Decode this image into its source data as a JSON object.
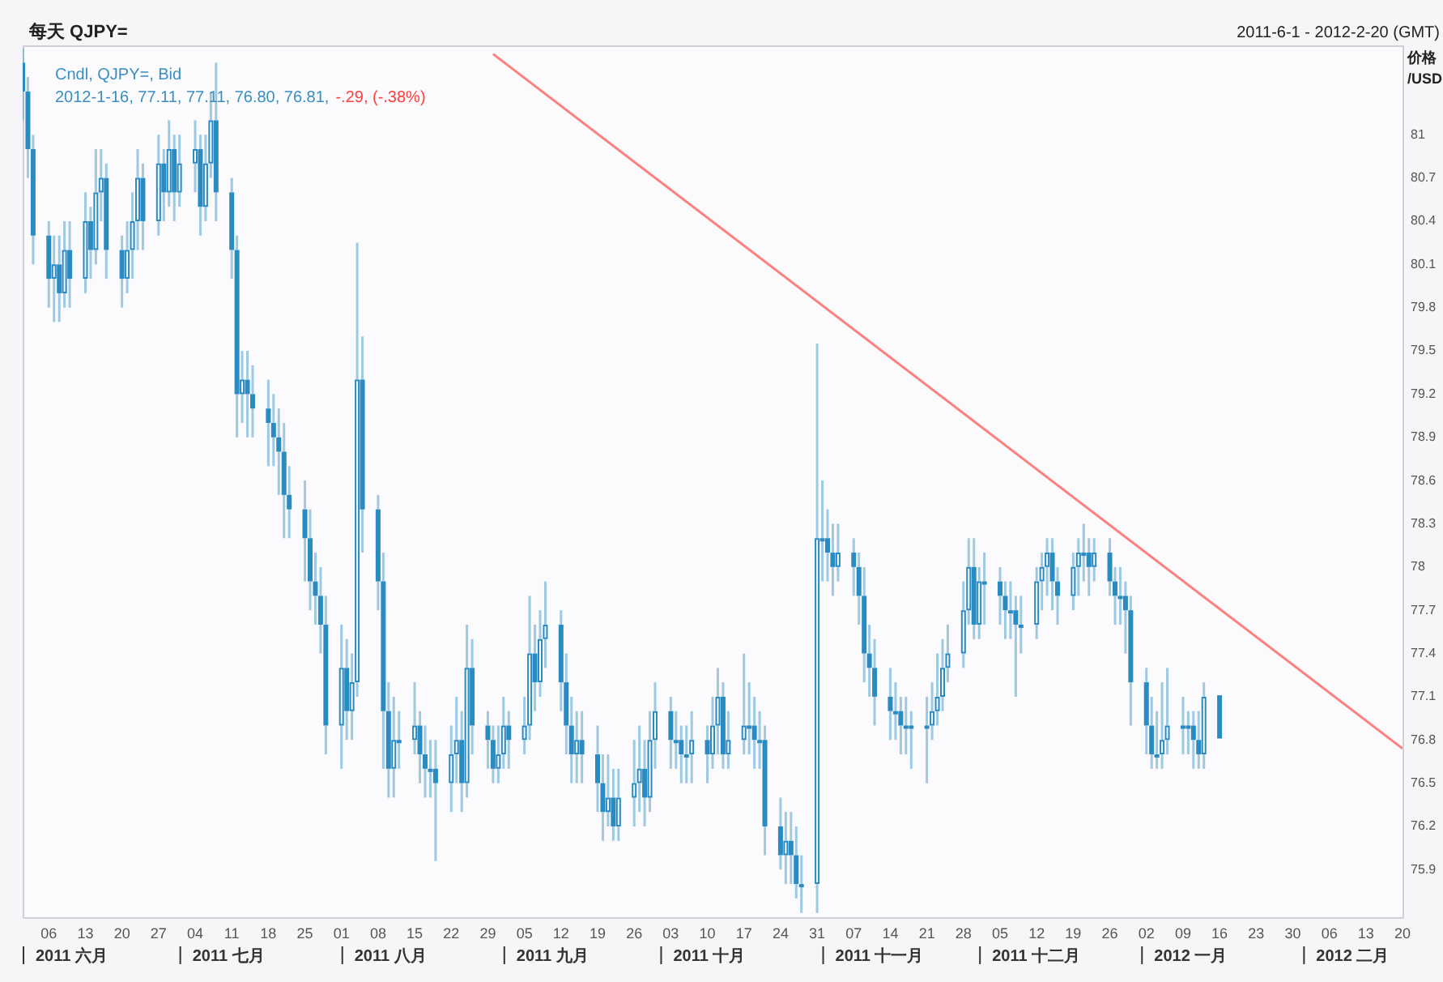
{
  "chart_data": {
    "type": "candlestick",
    "title": "每天 QJPY=",
    "subtitle": "2011-6-1 - 2012-2-20 (GMT)",
    "ylabel": "价格 /USD",
    "annotations": [
      "Cndl, QJPY=, Bid",
      "2012-1-16, 77.11, 77.11, 76.80, 76.81,",
      "-.29, (-.38%)",
      "2011 六月",
      "2011 七月",
      "2011 八月",
      "2011 九月",
      "2011 十月",
      "2011 十一月",
      "2011 十二月",
      "2012 一月",
      "2012 二月"
    ],
    "color": "#2a8bc3",
    "grid": false,
    "legend": false,
    "xlim": [
      "2011-06-01",
      "2012-02-20"
    ],
    "xticks": [
      {
        "value": "2011-06-06",
        "label": "06"
      },
      {
        "value": "2011-06-13",
        "label": "13"
      },
      {
        "value": "2011-06-20",
        "label": "20"
      },
      {
        "value": "2011-06-27",
        "label": "27"
      },
      {
        "value": "2011-07-04",
        "label": "04"
      },
      {
        "value": "2011-07-11",
        "label": "11"
      },
      {
        "value": "2011-07-18",
        "label": "18"
      },
      {
        "value": "2011-07-25",
        "label": "25"
      },
      {
        "value": "2011-08-01",
        "label": "01"
      },
      {
        "value": "2011-08-08",
        "label": "08"
      },
      {
        "value": "2011-08-15",
        "label": "15"
      },
      {
        "value": "2011-08-22",
        "label": "22"
      },
      {
        "value": "2011-08-29",
        "label": "29"
      },
      {
        "value": "2011-09-05",
        "label": "05"
      },
      {
        "value": "2011-09-12",
        "label": "12"
      },
      {
        "value": "2011-09-19",
        "label": "19"
      },
      {
        "value": "2011-09-26",
        "label": "26"
      },
      {
        "value": "2011-10-03",
        "label": "03"
      },
      {
        "value": "2011-10-10",
        "label": "10"
      },
      {
        "value": "2011-10-17",
        "label": "17"
      },
      {
        "value": "2011-10-24",
        "label": "24"
      },
      {
        "value": "2011-10-31",
        "label": "31"
      },
      {
        "value": "2011-11-07",
        "label": "07"
      },
      {
        "value": "2011-11-14",
        "label": "14"
      },
      {
        "value": "2011-11-21",
        "label": "21"
      },
      {
        "value": "2011-11-28",
        "label": "28"
      },
      {
        "value": "2011-12-05",
        "label": "05"
      },
      {
        "value": "2011-12-12",
        "label": "12"
      },
      {
        "value": "2011-12-19",
        "label": "19"
      },
      {
        "value": "2011-12-26",
        "label": "26"
      },
      {
        "value": "2012-01-02",
        "label": "02"
      },
      {
        "value": "2012-01-09",
        "label": "09"
      },
      {
        "value": "2012-01-16",
        "label": "16"
      },
      {
        "value": "2012-01-23",
        "label": "23"
      },
      {
        "value": "2012-01-30",
        "label": "30"
      },
      {
        "value": "2012-02-06",
        "label": "06"
      },
      {
        "value": "2012-02-13",
        "label": "13"
      },
      {
        "value": "2012-02-20",
        "label": "20"
      }
    ],
    "ylim": [
      75.57,
      81.62
    ],
    "yticks": [
      81,
      80.7,
      80.4,
      80.1,
      79.8,
      79.5,
      79.2,
      78.9,
      78.6,
      78.3,
      78,
      77.7,
      77.4,
      77.1,
      76.8,
      76.5,
      76.2,
      75.9
    ],
    "x": [
      "2011-06-01",
      "2011-06-02",
      "2011-06-03",
      "2011-06-06",
      "2011-06-07",
      "2011-06-08",
      "2011-06-09",
      "2011-06-10",
      "2011-06-13",
      "2011-06-14",
      "2011-06-15",
      "2011-06-16",
      "2011-06-17",
      "2011-06-20",
      "2011-06-21",
      "2011-06-22",
      "2011-06-23",
      "2011-06-24",
      "2011-06-27",
      "2011-06-28",
      "2011-06-29",
      "2011-06-30",
      "2011-07-01",
      "2011-07-04",
      "2011-07-05",
      "2011-07-06",
      "2011-07-07",
      "2011-07-08",
      "2011-07-11",
      "2011-07-12",
      "2011-07-13",
      "2011-07-14",
      "2011-07-15",
      "2011-07-18",
      "2011-07-19",
      "2011-07-20",
      "2011-07-21",
      "2011-07-22",
      "2011-07-25",
      "2011-07-26",
      "2011-07-27",
      "2011-07-28",
      "2011-07-29",
      "2011-08-01",
      "2011-08-02",
      "2011-08-03",
      "2011-08-04",
      "2011-08-05",
      "2011-08-08",
      "2011-08-09",
      "2011-08-10",
      "2011-08-11",
      "2011-08-12",
      "2011-08-15",
      "2011-08-16",
      "2011-08-17",
      "2011-08-18",
      "2011-08-19",
      "2011-08-22",
      "2011-08-23",
      "2011-08-24",
      "2011-08-25",
      "2011-08-26",
      "2011-08-29",
      "2011-08-30",
      "2011-08-31",
      "2011-09-01",
      "2011-09-02",
      "2011-09-05",
      "2011-09-06",
      "2011-09-07",
      "2011-09-08",
      "2011-09-09",
      "2011-09-12",
      "2011-09-13",
      "2011-09-14",
      "2011-09-15",
      "2011-09-16",
      "2011-09-19",
      "2011-09-20",
      "2011-09-21",
      "2011-09-22",
      "2011-09-23",
      "2011-09-26",
      "2011-09-27",
      "2011-09-28",
      "2011-09-29",
      "2011-09-30",
      "2011-10-03",
      "2011-10-04",
      "2011-10-05",
      "2011-10-06",
      "2011-10-07",
      "2011-10-10",
      "2011-10-11",
      "2011-10-12",
      "2011-10-13",
      "2011-10-14",
      "2011-10-17",
      "2011-10-18",
      "2011-10-19",
      "2011-10-20",
      "2011-10-21",
      "2011-10-24",
      "2011-10-25",
      "2011-10-26",
      "2011-10-27",
      "2011-10-28",
      "2011-10-31",
      "2011-11-01",
      "2011-11-02",
      "2011-11-03",
      "2011-11-04",
      "2011-11-07",
      "2011-11-08",
      "2011-11-09",
      "2011-11-10",
      "2011-11-11",
      "2011-11-14",
      "2011-11-15",
      "2011-11-16",
      "2011-11-17",
      "2011-11-18",
      "2011-11-21",
      "2011-11-22",
      "2011-11-23",
      "2011-11-24",
      "2011-11-25",
      "2011-11-28",
      "2011-11-29",
      "2011-11-30",
      "2011-12-01",
      "2011-12-02",
      "2011-12-05",
      "2011-12-06",
      "2011-12-07",
      "2011-12-08",
      "2011-12-09",
      "2011-12-12",
      "2011-12-13",
      "2011-12-14",
      "2011-12-15",
      "2011-12-16",
      "2011-12-19",
      "2011-12-20",
      "2011-12-21",
      "2011-12-22",
      "2011-12-23",
      "2011-12-26",
      "2011-12-27",
      "2011-12-28",
      "2011-12-29",
      "2011-12-30",
      "2012-01-02",
      "2012-01-03",
      "2012-01-04",
      "2012-01-05",
      "2012-01-06",
      "2012-01-09",
      "2012-01-10",
      "2012-01-11",
      "2012-01-12",
      "2012-01-13",
      "2012-01-16"
    ],
    "ohlc": [
      [
        81.5,
        81.6,
        81.1,
        81.3
      ],
      [
        81.3,
        81.4,
        80.7,
        80.9
      ],
      [
        80.9,
        81.0,
        80.1,
        80.3
      ],
      [
        80.3,
        80.4,
        79.8,
        80.0
      ],
      [
        80.0,
        80.3,
        79.7,
        80.1
      ],
      [
        80.1,
        80.3,
        79.7,
        79.9
      ],
      [
        79.9,
        80.4,
        79.8,
        80.2
      ],
      [
        80.2,
        80.4,
        79.8,
        80.0
      ],
      [
        80.0,
        80.6,
        79.9,
        80.4
      ],
      [
        80.4,
        80.5,
        80.0,
        80.2
      ],
      [
        80.2,
        80.9,
        80.1,
        80.6
      ],
      [
        80.6,
        80.9,
        80.4,
        80.7
      ],
      [
        80.7,
        80.8,
        80.0,
        80.2
      ],
      [
        80.2,
        80.3,
        79.8,
        80.0
      ],
      [
        80.0,
        80.4,
        79.9,
        80.2
      ],
      [
        80.2,
        80.6,
        80.0,
        80.4
      ],
      [
        80.4,
        80.9,
        80.2,
        80.7
      ],
      [
        80.7,
        80.8,
        80.2,
        80.4
      ],
      [
        80.4,
        81.0,
        80.3,
        80.8
      ],
      [
        80.8,
        80.9,
        80.4,
        80.6
      ],
      [
        80.6,
        81.1,
        80.5,
        80.9
      ],
      [
        80.9,
        81.0,
        80.4,
        80.6
      ],
      [
        80.6,
        81.0,
        80.5,
        80.8
      ],
      [
        80.8,
        81.1,
        80.6,
        80.9
      ],
      [
        80.9,
        81.0,
        80.3,
        80.5
      ],
      [
        80.5,
        81.0,
        80.4,
        80.8
      ],
      [
        80.8,
        81.3,
        80.7,
        81.1
      ],
      [
        81.1,
        81.5,
        80.4,
        80.6
      ],
      [
        80.6,
        80.7,
        80.0,
        80.2
      ],
      [
        80.2,
        80.3,
        78.9,
        79.2
      ],
      [
        79.2,
        79.5,
        79.0,
        79.3
      ],
      [
        79.3,
        79.5,
        78.9,
        79.2
      ],
      [
        79.2,
        79.4,
        78.9,
        79.1
      ],
      [
        79.1,
        79.3,
        78.7,
        79.0
      ],
      [
        79.0,
        79.2,
        78.7,
        78.9
      ],
      [
        78.9,
        79.1,
        78.5,
        78.8
      ],
      [
        78.8,
        79.0,
        78.2,
        78.5
      ],
      [
        78.5,
        78.7,
        78.2,
        78.4
      ],
      [
        78.4,
        78.6,
        77.9,
        78.2
      ],
      [
        78.2,
        78.4,
        77.7,
        77.9
      ],
      [
        77.9,
        78.1,
        77.6,
        77.8
      ],
      [
        77.8,
        78.0,
        77.4,
        77.6
      ],
      [
        77.6,
        77.8,
        76.7,
        76.9
      ],
      [
        76.9,
        77.6,
        76.6,
        77.3
      ],
      [
        77.3,
        77.5,
        76.8,
        77.0
      ],
      [
        77.0,
        77.4,
        76.8,
        77.2
      ],
      [
        77.2,
        80.25,
        77.1,
        79.3
      ],
      [
        79.3,
        79.6,
        78.1,
        78.4
      ],
      [
        78.4,
        78.5,
        77.7,
        77.9
      ],
      [
        77.9,
        78.1,
        76.6,
        77.0
      ],
      [
        77.0,
        77.2,
        76.4,
        76.6
      ],
      [
        76.6,
        77.1,
        76.4,
        76.8
      ],
      [
        76.8,
        77.0,
        76.6,
        76.8
      ],
      [
        76.8,
        77.2,
        76.7,
        76.9
      ],
      [
        76.9,
        77.0,
        76.5,
        76.7
      ],
      [
        76.7,
        76.9,
        76.4,
        76.6
      ],
      [
        76.6,
        76.8,
        76.4,
        76.6
      ],
      [
        76.6,
        76.8,
        75.96,
        76.5
      ],
      [
        76.5,
        76.9,
        76.3,
        76.7
      ],
      [
        76.7,
        77.1,
        76.5,
        76.8
      ],
      [
        76.8,
        77.0,
        76.3,
        76.5
      ],
      [
        76.5,
        77.6,
        76.4,
        77.3
      ],
      [
        77.3,
        77.5,
        76.7,
        76.9
      ],
      [
        76.9,
        77.0,
        76.6,
        76.8
      ],
      [
        76.8,
        76.9,
        76.5,
        76.6
      ],
      [
        76.6,
        76.9,
        76.5,
        76.7
      ],
      [
        76.7,
        77.1,
        76.6,
        76.9
      ],
      [
        76.9,
        77.0,
        76.6,
        76.8
      ],
      [
        76.8,
        77.1,
        76.7,
        76.9
      ],
      [
        76.9,
        77.8,
        76.8,
        77.4
      ],
      [
        77.4,
        77.6,
        77.0,
        77.2
      ],
      [
        77.2,
        77.7,
        77.1,
        77.5
      ],
      [
        77.5,
        77.9,
        77.3,
        77.6
      ],
      [
        77.6,
        77.7,
        77.0,
        77.2
      ],
      [
        77.2,
        77.4,
        76.7,
        76.9
      ],
      [
        76.9,
        77.1,
        76.5,
        76.7
      ],
      [
        76.7,
        77.0,
        76.5,
        76.8
      ],
      [
        76.8,
        77.0,
        76.5,
        76.7
      ],
      [
        76.7,
        76.9,
        76.3,
        76.5
      ],
      [
        76.5,
        76.7,
        76.1,
        76.3
      ],
      [
        76.3,
        76.7,
        76.2,
        76.4
      ],
      [
        76.4,
        76.6,
        76.1,
        76.2
      ],
      [
        76.2,
        76.6,
        76.1,
        76.4
      ],
      [
        76.4,
        76.8,
        76.2,
        76.5
      ],
      [
        76.5,
        76.9,
        76.3,
        76.6
      ],
      [
        76.6,
        76.8,
        76.2,
        76.4
      ],
      [
        76.4,
        77.0,
        76.3,
        76.8
      ],
      [
        76.8,
        77.2,
        76.6,
        77.0
      ],
      [
        77.0,
        77.1,
        76.6,
        76.8
      ],
      [
        76.8,
        77.0,
        76.6,
        76.8
      ],
      [
        76.8,
        76.9,
        76.5,
        76.7
      ],
      [
        76.7,
        76.9,
        76.5,
        76.7
      ],
      [
        76.7,
        77.0,
        76.5,
        76.8
      ],
      [
        76.8,
        76.9,
        76.5,
        76.7
      ],
      [
        76.7,
        77.1,
        76.6,
        76.9
      ],
      [
        76.9,
        77.3,
        76.7,
        77.1
      ],
      [
        77.1,
        77.2,
        76.6,
        76.7
      ],
      [
        76.7,
        77.0,
        76.6,
        76.8
      ],
      [
        76.8,
        77.4,
        76.7,
        76.9
      ],
      [
        76.9,
        77.2,
        76.7,
        76.9
      ],
      [
        76.9,
        77.1,
        76.6,
        76.8
      ],
      [
        76.8,
        77.0,
        76.6,
        76.8
      ],
      [
        76.8,
        76.9,
        76.0,
        76.2
      ],
      [
        76.2,
        76.4,
        75.9,
        76.0
      ],
      [
        76.0,
        76.3,
        75.8,
        76.1
      ],
      [
        76.1,
        76.3,
        75.8,
        76.0
      ],
      [
        76.0,
        76.2,
        75.7,
        75.8
      ],
      [
        75.8,
        76.0,
        75.6,
        75.8
      ],
      [
        75.8,
        79.55,
        75.6,
        78.2
      ],
      [
        78.2,
        78.6,
        77.9,
        78.2
      ],
      [
        78.2,
        78.4,
        77.9,
        78.1
      ],
      [
        78.1,
        78.3,
        77.8,
        78.0
      ],
      [
        78.0,
        78.3,
        77.9,
        78.1
      ],
      [
        78.1,
        78.2,
        77.8,
        78.0
      ],
      [
        78.0,
        78.1,
        77.6,
        77.8
      ],
      [
        77.8,
        78.0,
        77.2,
        77.4
      ],
      [
        77.4,
        77.6,
        77.1,
        77.3
      ],
      [
        77.3,
        77.5,
        76.9,
        77.1
      ],
      [
        77.1,
        77.3,
        76.8,
        77.0
      ],
      [
        77.0,
        77.2,
        76.8,
        77.0
      ],
      [
        77.0,
        77.1,
        76.7,
        76.9
      ],
      [
        76.9,
        77.1,
        76.7,
        76.9
      ],
      [
        76.9,
        77.0,
        76.6,
        76.9
      ],
      [
        76.9,
        77.1,
        76.5,
        76.9
      ],
      [
        76.9,
        77.2,
        76.8,
        77.0
      ],
      [
        77.0,
        77.4,
        76.9,
        77.1
      ],
      [
        77.1,
        77.5,
        77.0,
        77.3
      ],
      [
        77.3,
        77.6,
        77.2,
        77.4
      ],
      [
        77.4,
        77.9,
        77.3,
        77.7
      ],
      [
        77.7,
        78.2,
        77.6,
        78.0
      ],
      [
        78.0,
        78.2,
        77.5,
        77.6
      ],
      [
        77.6,
        78.0,
        77.5,
        77.9
      ],
      [
        77.9,
        78.1,
        77.6,
        77.9
      ],
      [
        77.9,
        78.0,
        77.6,
        77.8
      ],
      [
        77.8,
        77.9,
        77.5,
        77.7
      ],
      [
        77.7,
        77.9,
        77.5,
        77.7
      ],
      [
        77.7,
        77.8,
        77.1,
        77.6
      ],
      [
        77.6,
        77.8,
        77.4,
        77.6
      ],
      [
        77.6,
        78.0,
        77.5,
        77.9
      ],
      [
        77.9,
        78.1,
        77.7,
        78.0
      ],
      [
        78.0,
        78.2,
        77.8,
        78.1
      ],
      [
        78.1,
        78.2,
        77.7,
        77.9
      ],
      [
        77.9,
        78.0,
        77.6,
        77.8
      ],
      [
        77.8,
        78.1,
        77.7,
        78.0
      ],
      [
        78.0,
        78.2,
        77.8,
        78.1
      ],
      [
        78.1,
        78.3,
        77.9,
        78.1
      ],
      [
        78.1,
        78.2,
        77.8,
        78.0
      ],
      [
        78.0,
        78.2,
        77.9,
        78.1
      ],
      [
        78.1,
        78.2,
        77.8,
        77.9
      ],
      [
        77.9,
        78.0,
        77.6,
        77.8
      ],
      [
        77.8,
        78.0,
        77.6,
        77.8
      ],
      [
        77.8,
        77.9,
        77.4,
        77.7
      ],
      [
        77.7,
        77.8,
        76.9,
        77.2
      ],
      [
        77.2,
        77.3,
        76.7,
        76.9
      ],
      [
        76.9,
        77.1,
        76.6,
        76.7
      ],
      [
        76.7,
        77.0,
        76.6,
        76.7
      ],
      [
        76.7,
        77.2,
        76.6,
        76.8
      ],
      [
        76.8,
        77.3,
        76.7,
        76.9
      ],
      [
        76.9,
        77.1,
        76.7,
        76.9
      ],
      [
        76.9,
        77.0,
        76.7,
        76.9
      ],
      [
        76.9,
        77.0,
        76.6,
        76.8
      ],
      [
        76.8,
        77.0,
        76.6,
        76.7
      ],
      [
        76.7,
        77.2,
        76.6,
        77.1
      ],
      [
        77.11,
        77.11,
        76.8,
        76.81
      ]
    ],
    "series": [
      {
        "type": "line",
        "x": [
          "2011-08-30",
          "2012-02-20"
        ],
        "values": [
          81.56,
          76.74
        ],
        "color": "#ff7f7f"
      }
    ]
  }
}
